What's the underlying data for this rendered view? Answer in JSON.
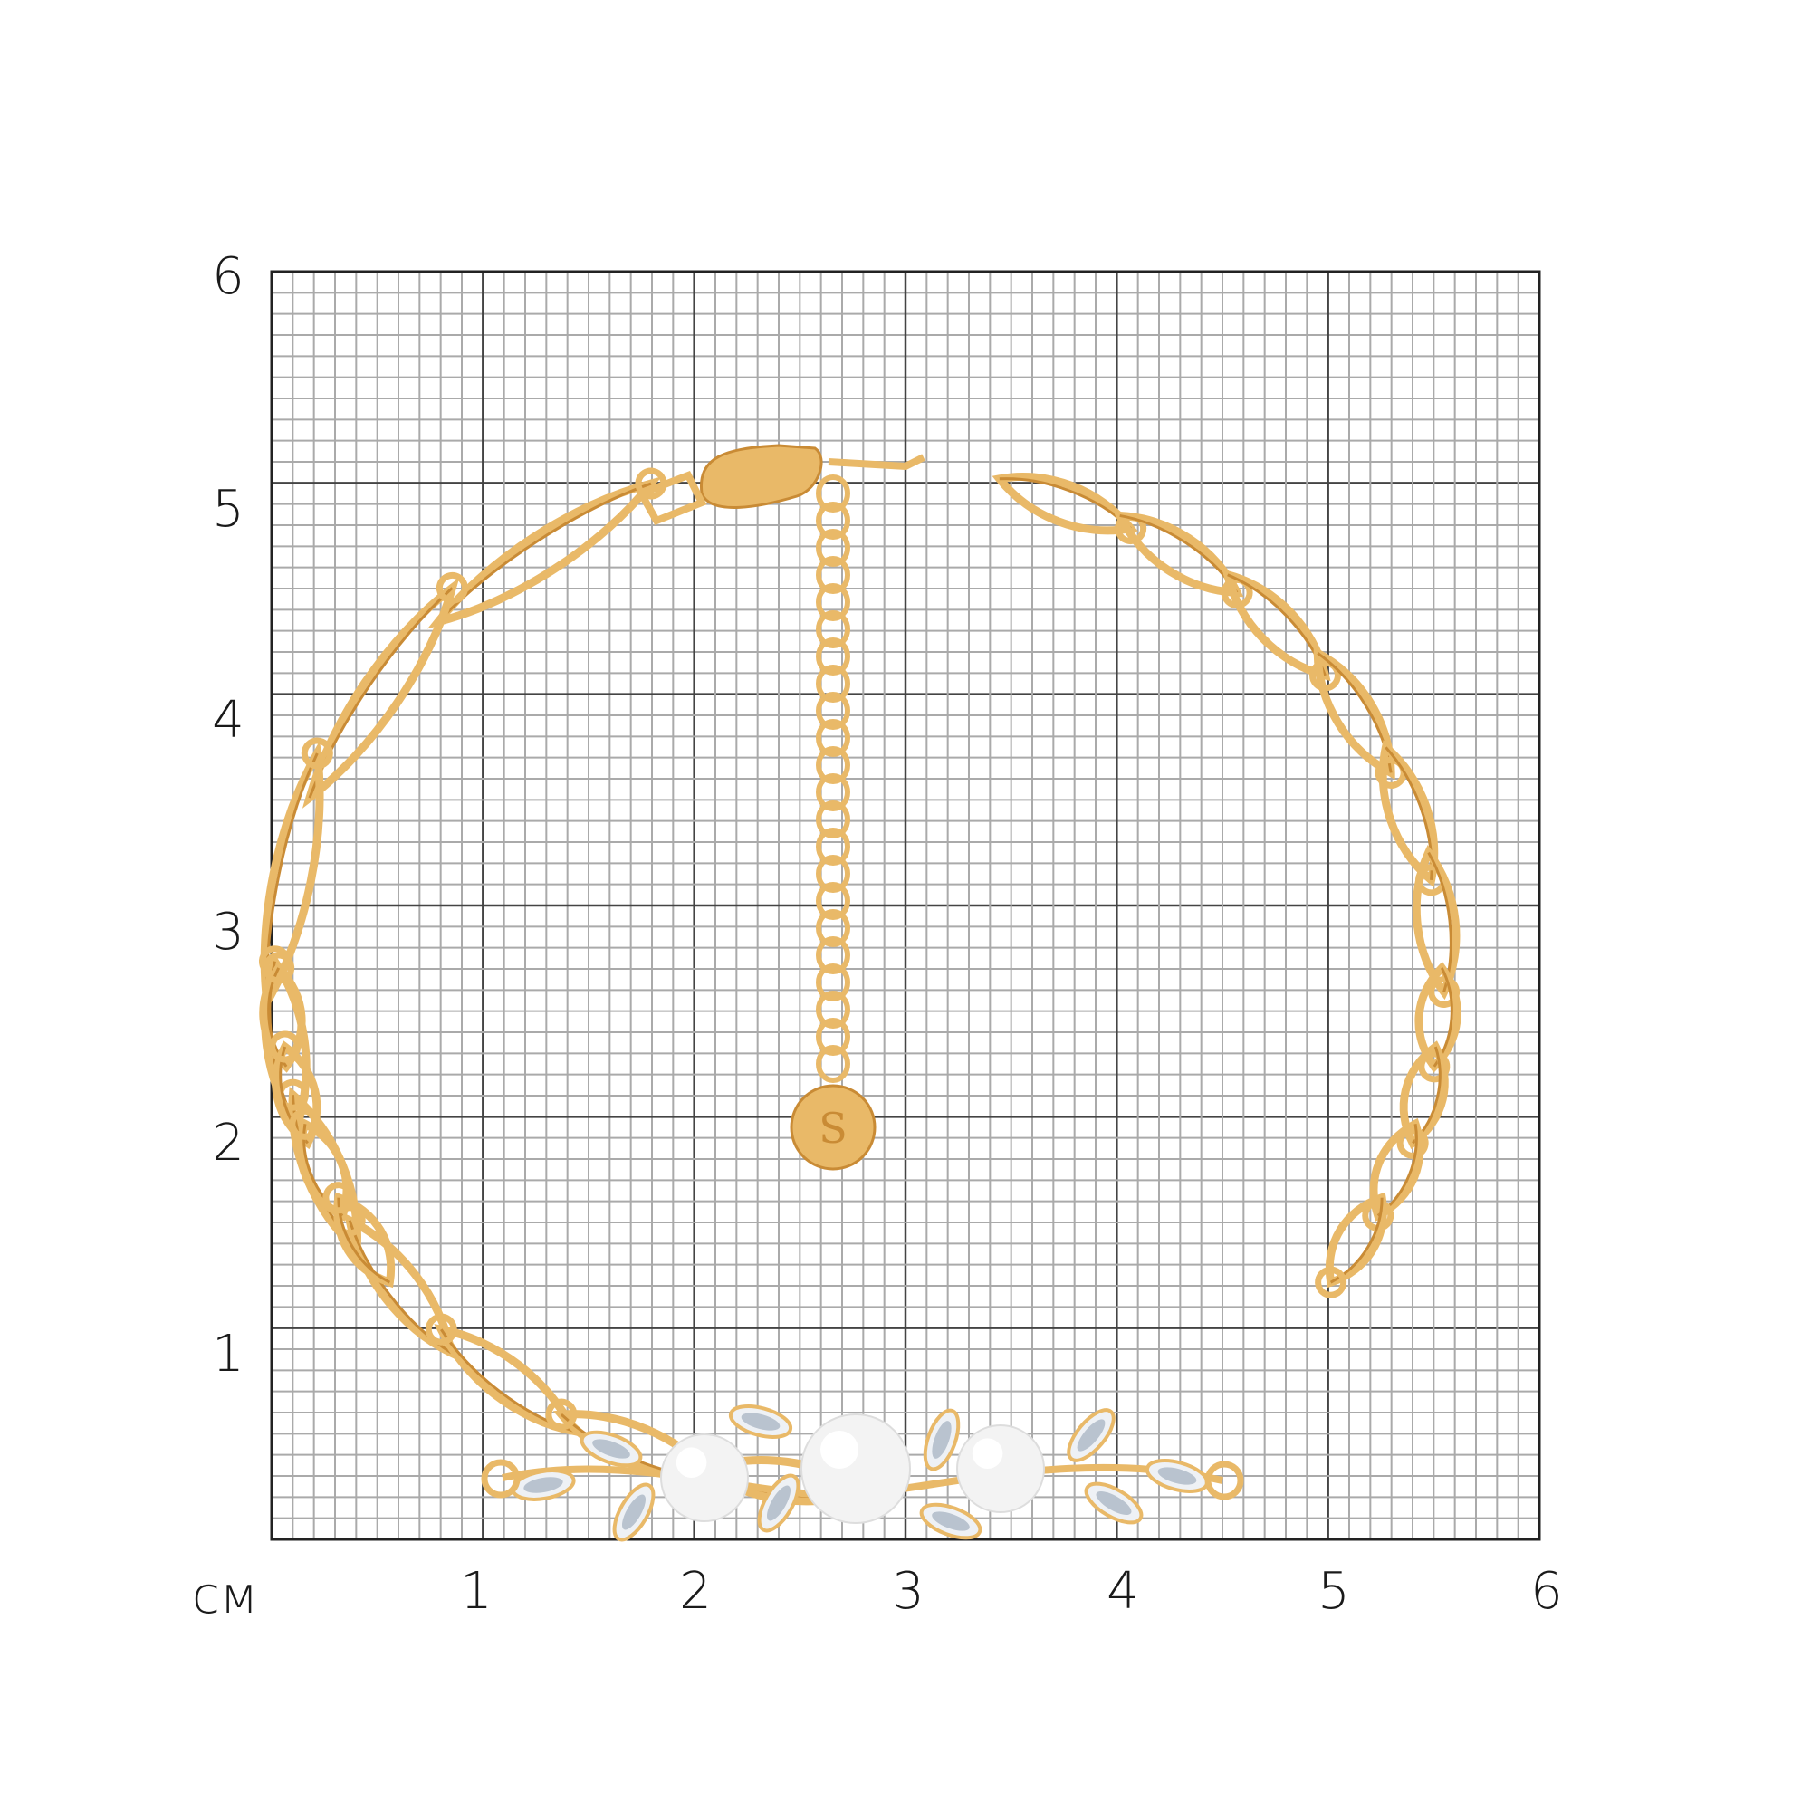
{
  "ruler": {
    "unit_label": "см",
    "x_labels": [
      "1",
      "2",
      "3",
      "4",
      "5",
      "6"
    ],
    "y_labels": [
      "1",
      "2",
      "3",
      "4",
      "5",
      "6"
    ],
    "range_cm": [
      0,
      6
    ],
    "minor_divisions_per_cm": 10
  },
  "product": {
    "type": "bracelet",
    "metal_color": "#e9b968",
    "pearl_count": 3,
    "pendant_logo": "S"
  }
}
